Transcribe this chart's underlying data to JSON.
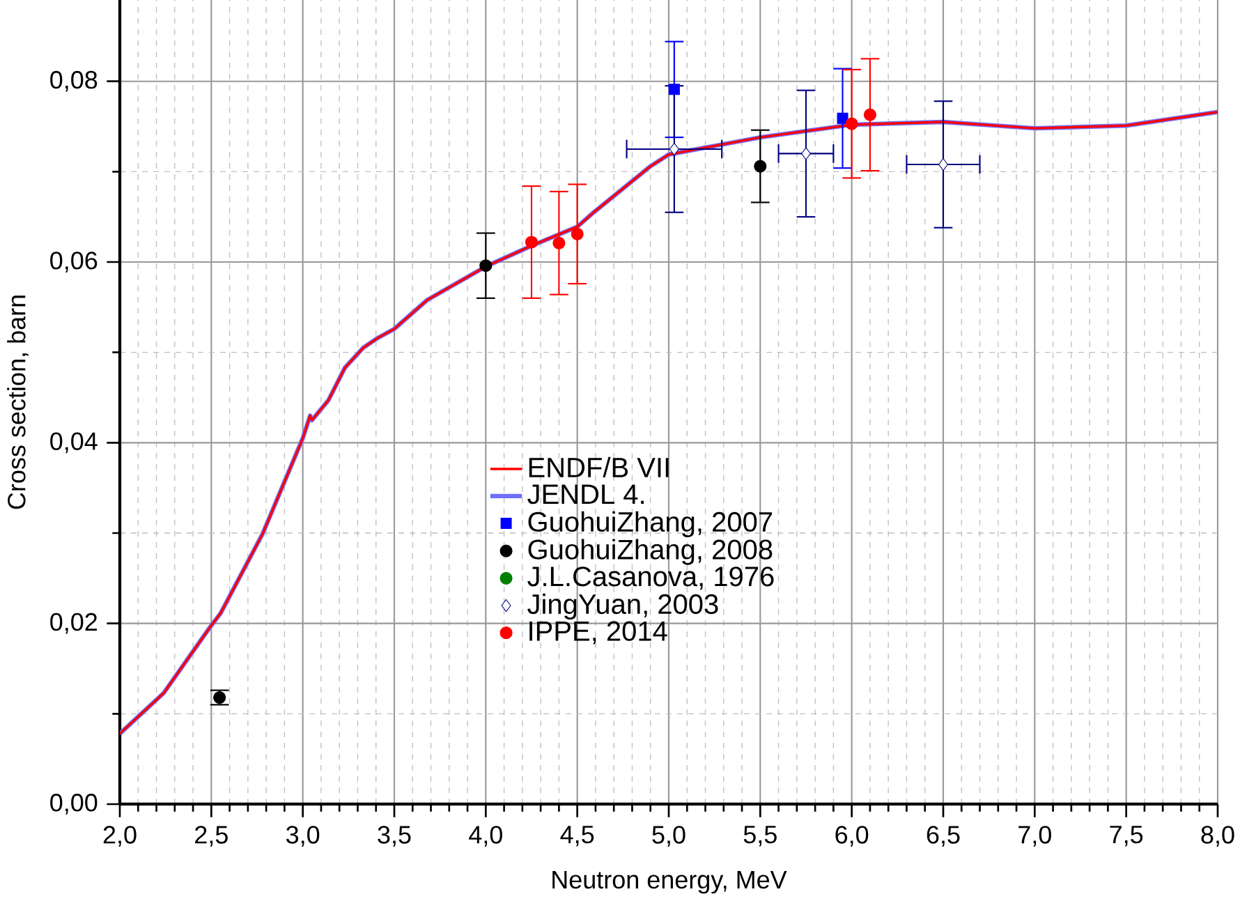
{
  "chart_data": {
    "type": "line",
    "xlabel": "Neutron energy, MeV",
    "ylabel": "Cross section, barn",
    "xlim": [
      2.0,
      8.0
    ],
    "ylim": [
      0,
      0.089
    ],
    "xticks": [
      {
        "value": 2.0,
        "label": "2,0"
      },
      {
        "value": 2.5,
        "label": "2,5"
      },
      {
        "value": 3.0,
        "label": "3,0"
      },
      {
        "value": 3.5,
        "label": "3,5"
      },
      {
        "value": 4.0,
        "label": "4,0"
      },
      {
        "value": 4.5,
        "label": "4,5"
      },
      {
        "value": 5.0,
        "label": "5,0"
      },
      {
        "value": 5.5,
        "label": "5,5"
      },
      {
        "value": 6.0,
        "label": "6,0"
      },
      {
        "value": 6.5,
        "label": "6,5"
      },
      {
        "value": 7.0,
        "label": "7,0"
      },
      {
        "value": 7.5,
        "label": "7,5"
      },
      {
        "value": 8.0,
        "label": "8,0"
      }
    ],
    "yticks": [
      {
        "value": 0,
        "label": "0,00"
      },
      {
        "value": 0.02,
        "label": "0,02"
      },
      {
        "value": 0.04,
        "label": "0,04"
      },
      {
        "value": 0.06,
        "label": "0,06"
      },
      {
        "value": 0.08,
        "label": "0,08"
      }
    ],
    "grid": true,
    "legend": "center",
    "series": [
      {
        "name": "ENDF/B VII",
        "color": "#ff0000",
        "x": [
          2.0,
          2.24,
          2.49,
          2.55,
          2.78,
          3.0,
          3.04,
          3.05,
          3.14,
          3.23,
          3.33,
          3.41,
          3.5,
          3.68,
          4.0,
          4.25,
          4.5,
          4.59,
          4.9,
          5.0,
          5.5,
          6.0,
          6.5,
          7.0,
          7.5,
          8.0
        ],
        "values": [
          0.0078,
          0.0123,
          0.0195,
          0.0211,
          0.0299,
          0.0405,
          0.043,
          0.0425,
          0.0447,
          0.0483,
          0.0505,
          0.0516,
          0.0526,
          0.0558,
          0.0595,
          0.0618,
          0.0639,
          0.0655,
          0.0706,
          0.0719,
          0.0738,
          0.0752,
          0.0755,
          0.0748,
          0.0751,
          0.0766
        ]
      },
      {
        "name": "JENDL 4.",
        "color": "#7070ff",
        "x": [
          2.0,
          2.24,
          2.49,
          2.55,
          2.78,
          3.0,
          3.04,
          3.05,
          3.14,
          3.23,
          3.33,
          3.41,
          3.5,
          3.68,
          4.0,
          4.25,
          4.5,
          4.59,
          4.9,
          5.0,
          5.5,
          6.0,
          6.5,
          7.0,
          7.5,
          8.0
        ],
        "values": [
          0.0078,
          0.0123,
          0.0195,
          0.0211,
          0.0299,
          0.0405,
          0.043,
          0.0425,
          0.0447,
          0.0483,
          0.0505,
          0.0516,
          0.0526,
          0.0558,
          0.0595,
          0.0618,
          0.0639,
          0.0655,
          0.0706,
          0.0719,
          0.0738,
          0.0752,
          0.0755,
          0.0748,
          0.0751,
          0.0766
        ]
      },
      {
        "name": "GuohuiZhang, 2007",
        "type": "scatter",
        "marker": "square",
        "color": "#0000ff",
        "x": [
          5.03,
          5.95
        ],
        "values": [
          0.0791,
          0.0759
        ],
        "errors": [
          0.0053,
          0.0055
        ]
      },
      {
        "name": "GuohuiZhang, 2008",
        "type": "scatter",
        "marker": "circle",
        "color": "#000000",
        "x": [
          2.545,
          4.0,
          5.5
        ],
        "values": [
          0.0118,
          0.0596,
          0.0706
        ],
        "errors": [
          0.0008,
          0.0036,
          0.004
        ]
      },
      {
        "name": "J.L.Casanova, 1976",
        "type": "scatter",
        "marker": "circle",
        "color": "#008000"
      },
      {
        "name": "JingYuan, 2003",
        "type": "scatter",
        "marker": "diamond",
        "color": "#000080",
        "x": [
          5.03,
          5.75,
          6.5
        ],
        "values": [
          0.0725,
          0.072,
          0.0708
        ],
        "errors": [
          0.007,
          0.007,
          0.007
        ],
        "xerrors": [
          0.26,
          0.15,
          0.2
        ]
      },
      {
        "name": "IPPE, 2014",
        "type": "scatter",
        "marker": "circle",
        "color": "#ff0000",
        "x": [
          4.25,
          4.4,
          4.5,
          6.0,
          6.1
        ],
        "values": [
          0.0622,
          0.0621,
          0.0631,
          0.0753,
          0.0763
        ],
        "errors": [
          0.0062,
          0.0057,
          0.0055,
          0.006,
          0.0062
        ]
      }
    ]
  }
}
